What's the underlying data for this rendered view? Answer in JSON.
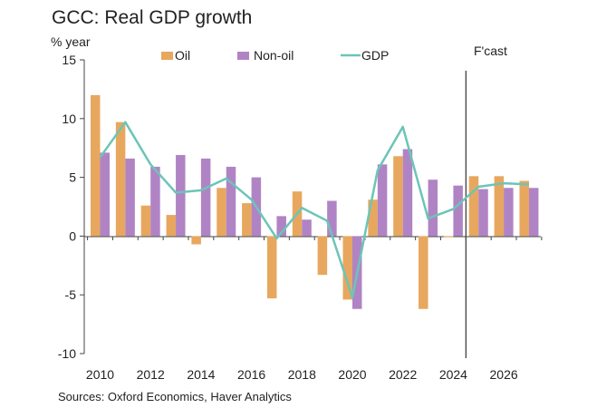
{
  "chart_data": {
    "type": "bar",
    "title": "GCC: Real GDP growth",
    "ylabel": "% year",
    "xlabel": "",
    "ylim": [
      -10,
      15
    ],
    "yticks": [
      15,
      10,
      5,
      0,
      -5,
      -10
    ],
    "categories": [
      "2010",
      "2011",
      "2012",
      "2013",
      "2014",
      "2015",
      "2016",
      "2017",
      "2018",
      "2019",
      "2020",
      "2021",
      "2022",
      "2023",
      "2024",
      "2025",
      "2026",
      "2027"
    ],
    "xtick_labels": [
      "2010",
      "2012",
      "2014",
      "2016",
      "2018",
      "2020",
      "2022",
      "2024",
      "2026"
    ],
    "series": [
      {
        "name": "Oil",
        "kind": "bar",
        "color": "#E8A75F",
        "values": [
          12.0,
          9.7,
          2.6,
          1.8,
          -0.7,
          4.1,
          2.8,
          -5.3,
          3.8,
          -3.3,
          -5.4,
          3.1,
          6.8,
          -6.2,
          -0.1,
          5.1,
          5.1,
          4.7
        ]
      },
      {
        "name": "Non-oil",
        "kind": "bar",
        "color": "#B084C4",
        "values": [
          7.1,
          6.6,
          5.9,
          6.9,
          6.6,
          5.9,
          5.0,
          1.7,
          1.4,
          3.0,
          -6.2,
          6.1,
          7.4,
          4.8,
          4.3,
          4.0,
          4.1,
          4.1
        ]
      },
      {
        "name": "GDP",
        "kind": "line",
        "color": "#6CC5B7",
        "values": [
          6.7,
          9.7,
          6.1,
          3.7,
          3.9,
          4.9,
          3.1,
          -0.2,
          2.4,
          1.3,
          -5.2,
          5.6,
          9.3,
          1.5,
          2.3,
          4.2,
          4.5,
          4.4
        ]
      }
    ],
    "legend": [
      "Oil",
      "Non-oil",
      "GDP"
    ],
    "annotations": [
      {
        "text": "F'cast"
      }
    ],
    "forecast_start_category": "2025",
    "grid": false
  },
  "source": "Sources: Oxford Economics, Haver Analytics"
}
